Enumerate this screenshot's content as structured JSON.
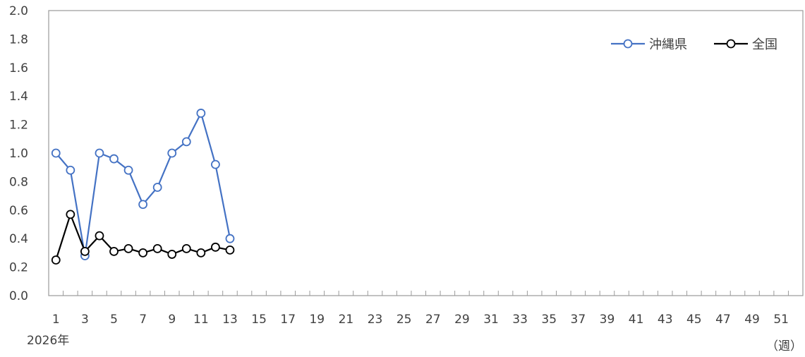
{
  "chart_data": {
    "type": "line",
    "x": [
      1,
      2,
      3,
      4,
      5,
      6,
      7,
      8,
      9,
      10,
      11,
      12,
      13
    ],
    "xlim": [
      1,
      52
    ],
    "xtick_labels": [
      "1",
      "3",
      "5",
      "7",
      "9",
      "11",
      "13",
      "15",
      "17",
      "19",
      "21",
      "23",
      "25",
      "27",
      "29",
      "31",
      "33",
      "35",
      "37",
      "39",
      "41",
      "43",
      "45",
      "47",
      "49",
      "51"
    ],
    "xlabel_left": "2026年",
    "xlabel_right": "（週）",
    "ylim": [
      0.0,
      2.0
    ],
    "ytick_labels": [
      "0.0",
      "0.2",
      "0.4",
      "0.6",
      "0.8",
      "1.0",
      "1.2",
      "1.4",
      "1.6",
      "1.8",
      "2.0"
    ],
    "grid": false,
    "legend_position": "top-right",
    "series": [
      {
        "name": "沖縄県",
        "color": "#4472c4",
        "values": [
          1.0,
          0.88,
          0.28,
          1.0,
          0.96,
          0.88,
          0.64,
          0.76,
          1.0,
          1.08,
          1.28,
          0.92,
          0.4
        ]
      },
      {
        "name": "全国",
        "color": "#000000",
        "values": [
          0.25,
          0.57,
          0.31,
          0.42,
          0.31,
          0.33,
          0.3,
          0.33,
          0.29,
          0.33,
          0.3,
          0.34,
          0.32
        ]
      }
    ]
  }
}
